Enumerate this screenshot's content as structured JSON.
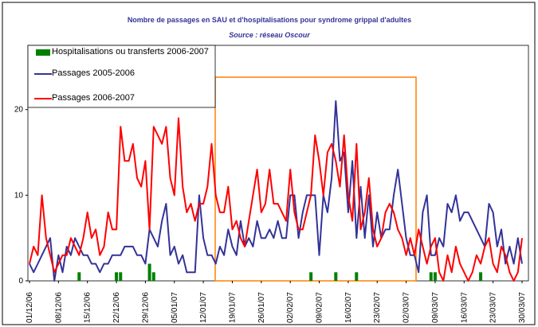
{
  "chart_data": {
    "type": "combo",
    "title": "Nombre de passages en SAU et d'hospitalisations pour syndrome grippal d'adultes",
    "subtitle": "Source : réseau Oscour",
    "categories": [
      "01/12/06",
      null,
      null,
      null,
      null,
      null,
      null,
      "08/12/06",
      null,
      null,
      null,
      null,
      null,
      null,
      "15/12/06",
      null,
      null,
      null,
      null,
      null,
      null,
      "22/12/06",
      null,
      null,
      null,
      null,
      null,
      null,
      "29/12/06",
      null,
      null,
      null,
      null,
      null,
      null,
      "05/01/07",
      null,
      null,
      null,
      null,
      null,
      null,
      "12/01/07",
      null,
      null,
      null,
      null,
      null,
      null,
      "19/01/07",
      null,
      null,
      null,
      null,
      null,
      null,
      "26/01/07",
      null,
      null,
      null,
      null,
      null,
      null,
      "02/02/07",
      null,
      null,
      null,
      null,
      null,
      null,
      "09/02/07",
      null,
      null,
      null,
      null,
      null,
      null,
      "16/02/07",
      null,
      null,
      null,
      null,
      null,
      null,
      "23/02/07",
      null,
      null,
      null,
      null,
      null,
      null,
      "02/03/07",
      null,
      null,
      null,
      null,
      null,
      null,
      "09/03/07",
      null,
      null,
      null,
      null,
      null,
      null,
      "16/03/07",
      null,
      null,
      null,
      null,
      null,
      null,
      "23/03/07",
      null,
      null,
      null,
      null,
      null,
      null,
      "30/03/07"
    ],
    "series": [
      {
        "name": "Hospitalisations ou transferts 2006-2007",
        "type": "bar",
        "color": "#008000",
        "values": [
          0,
          0,
          0,
          0,
          0,
          0,
          0,
          0,
          0,
          0,
          0,
          0,
          1,
          0,
          0,
          0,
          0,
          0,
          0,
          0,
          0,
          1,
          1,
          0,
          0,
          0,
          0,
          0,
          0,
          2,
          1,
          0,
          0,
          0,
          0,
          0,
          0,
          0,
          0,
          0,
          0,
          0,
          0,
          0,
          0,
          0,
          0,
          0,
          0,
          0,
          0,
          0,
          0,
          0,
          0,
          0,
          0,
          0,
          0,
          0,
          0,
          0,
          0,
          0,
          0,
          0,
          0,
          0,
          1,
          0,
          0,
          0,
          0,
          0,
          1,
          0,
          0,
          0,
          0,
          1,
          0,
          0,
          0,
          0,
          0,
          0,
          0,
          0,
          0,
          0,
          0,
          0,
          0,
          0,
          0,
          0,
          0,
          1,
          1,
          0,
          0,
          0,
          0,
          0,
          0,
          0,
          0,
          0,
          0,
          1,
          0,
          0,
          0,
          0,
          0,
          0,
          0,
          0,
          0,
          0
        ]
      },
      {
        "name": "Passages 2005-2006",
        "type": "line",
        "color": "#333399",
        "values": [
          2,
          1,
          2,
          3,
          4,
          5,
          0,
          3,
          1,
          4,
          3,
          5,
          4,
          3,
          3,
          2,
          2,
          1,
          2,
          2,
          3,
          3,
          3,
          4,
          4,
          4,
          3,
          3,
          2,
          6,
          5,
          4,
          7,
          9,
          3,
          4,
          2,
          3,
          1,
          1,
          1,
          10,
          5,
          3,
          3,
          2,
          4,
          3,
          6,
          4,
          3,
          7,
          4,
          5,
          4,
          7,
          5,
          5,
          6,
          5,
          7,
          5,
          5,
          10,
          10,
          5,
          8,
          10,
          10,
          10,
          3,
          10,
          8,
          12,
          21,
          14,
          15,
          8,
          14,
          5,
          11,
          5,
          10,
          4,
          8,
          5,
          6,
          6,
          10,
          13,
          9,
          5,
          3,
          3,
          1,
          8,
          10,
          3,
          3,
          5,
          4,
          9,
          8,
          10,
          7,
          8,
          8,
          7,
          6,
          5,
          4,
          9,
          8,
          4,
          6,
          2,
          4,
          2,
          5,
          2
        ]
      },
      {
        "name": "Passages 2006-2007",
        "type": "line",
        "color": "#ff0000",
        "values": [
          2,
          4,
          3,
          10,
          5,
          3,
          1,
          2,
          3,
          3,
          5,
          4,
          3,
          5,
          8,
          5,
          6,
          3,
          4,
          8,
          6,
          6,
          18,
          14,
          14,
          16,
          12,
          11,
          14,
          6,
          18,
          17,
          16,
          18,
          12,
          10,
          19,
          11,
          8,
          9,
          7,
          9,
          9,
          11,
          16,
          10,
          8,
          8,
          11,
          6,
          7,
          5,
          4,
          7,
          10,
          13,
          8,
          9,
          13,
          9,
          9,
          8,
          7,
          13,
          8,
          6,
          6,
          8,
          10,
          17,
          14,
          10,
          15,
          16,
          14,
          11,
          17,
          10,
          7,
          16,
          6,
          8,
          12,
          6,
          4,
          5,
          8,
          9,
          8,
          6,
          5,
          3,
          5,
          3,
          6,
          4,
          2,
          4,
          5,
          1,
          0,
          3,
          1,
          4,
          2,
          1,
          0,
          1,
          3,
          2,
          4,
          5,
          2,
          1,
          4,
          3,
          1,
          0,
          1,
          5
        ]
      }
    ],
    "ylim": [
      0,
      27.5
    ],
    "yticks": [
      0,
      10,
      20
    ],
    "grid": false,
    "legend": "upper left"
  }
}
